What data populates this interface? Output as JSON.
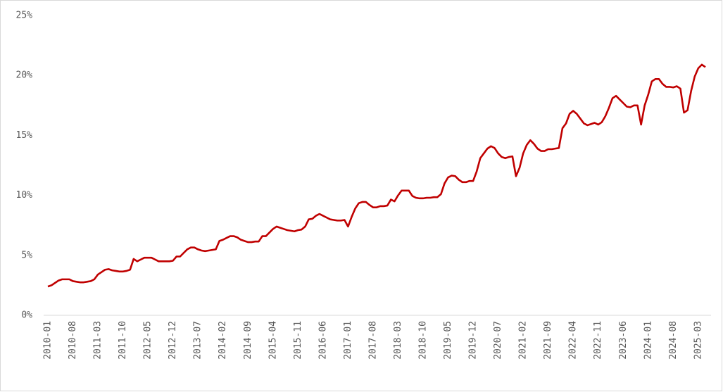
{
  "chart_data": {
    "type": "line",
    "categories": [
      "2010-01",
      null,
      null,
      null,
      null,
      null,
      null,
      "2010-08",
      null,
      null,
      null,
      null,
      null,
      null,
      "2011-03",
      null,
      null,
      null,
      null,
      null,
      null,
      "2011-10",
      null,
      null,
      null,
      null,
      null,
      null,
      "2012-05",
      null,
      null,
      null,
      null,
      null,
      null,
      "2012-12",
      null,
      null,
      null,
      null,
      null,
      null,
      "2013-07",
      null,
      null,
      null,
      null,
      null,
      null,
      "2014-02",
      null,
      null,
      null,
      null,
      null,
      null,
      "2014-09",
      null,
      null,
      null,
      null,
      null,
      null,
      "2015-04",
      null,
      null,
      null,
      null,
      null,
      null,
      "2015-11",
      null,
      null,
      null,
      null,
      null,
      null,
      "2016-06",
      null,
      null,
      null,
      null,
      null,
      null,
      "2017-01",
      null,
      null,
      null,
      null,
      null,
      null,
      "2017-08",
      null,
      null,
      null,
      null,
      null,
      null,
      "2018-03",
      null,
      null,
      null,
      null,
      null,
      null,
      "2018-10",
      null,
      null,
      null,
      null,
      null,
      null,
      "2019-05",
      null,
      null,
      null,
      null,
      null,
      null,
      "2019-12",
      null,
      null,
      null,
      null,
      null,
      null,
      "2020-07",
      null,
      null,
      null,
      null,
      null,
      null,
      "2021-02",
      null,
      null,
      null,
      null,
      null,
      null,
      "2021-09",
      null,
      null,
      null,
      null,
      null,
      null,
      "2022-04",
      null,
      null,
      null,
      null,
      null,
      null,
      "2022-11",
      null,
      null,
      null,
      null,
      null,
      null,
      "2023-06",
      null,
      null,
      null,
      null,
      null,
      null,
      "2024-01",
      null,
      null,
      null,
      null,
      null,
      null,
      "2024-08",
      null,
      null,
      null,
      null,
      null,
      null,
      "2025-03",
      null,
      null
    ],
    "values": [
      2.4,
      2.5,
      2.7,
      2.9,
      3.0,
      3.0,
      3.0,
      2.85,
      2.8,
      2.75,
      2.75,
      2.8,
      2.85,
      3.0,
      3.4,
      3.6,
      3.8,
      3.85,
      3.75,
      3.7,
      3.65,
      3.65,
      3.7,
      3.8,
      4.7,
      4.5,
      4.65,
      4.8,
      4.8,
      4.8,
      4.65,
      4.5,
      4.5,
      4.5,
      4.5,
      4.55,
      4.9,
      4.9,
      5.2,
      5.5,
      5.65,
      5.65,
      5.5,
      5.4,
      5.35,
      5.4,
      5.45,
      5.5,
      6.2,
      6.3,
      6.45,
      6.6,
      6.6,
      6.5,
      6.3,
      6.2,
      6.1,
      6.1,
      6.15,
      6.15,
      6.6,
      6.6,
      6.9,
      7.2,
      7.4,
      7.3,
      7.2,
      7.1,
      7.05,
      7.0,
      7.1,
      7.15,
      7.4,
      8.0,
      8.05,
      8.3,
      8.45,
      8.3,
      8.15,
      8.0,
      7.95,
      7.9,
      7.9,
      7.95,
      7.4,
      8.2,
      8.9,
      9.35,
      9.45,
      9.45,
      9.2,
      9.0,
      9.0,
      9.1,
      9.1,
      9.15,
      9.65,
      9.5,
      10.0,
      10.4,
      10.4,
      10.4,
      9.95,
      9.8,
      9.75,
      9.75,
      9.8,
      9.8,
      9.85,
      9.85,
      10.1,
      11.0,
      11.5,
      11.65,
      11.6,
      11.3,
      11.1,
      11.1,
      11.2,
      11.2,
      12.0,
      13.1,
      13.5,
      13.9,
      14.1,
      13.95,
      13.5,
      13.2,
      13.1,
      13.2,
      13.25,
      11.6,
      12.3,
      13.5,
      14.2,
      14.6,
      14.3,
      13.9,
      13.7,
      13.7,
      13.85,
      13.85,
      13.9,
      13.95,
      15.6,
      16.0,
      16.8,
      17.05,
      16.8,
      16.4,
      16.0,
      15.85,
      15.95,
      16.05,
      15.9,
      16.1,
      16.6,
      17.3,
      18.1,
      18.3,
      18.0,
      17.7,
      17.4,
      17.35,
      17.5,
      17.5,
      15.9,
      17.5,
      18.4,
      19.5,
      19.7,
      19.7,
      19.3,
      19.05,
      19.05,
      19.0,
      19.1,
      18.9,
      16.9,
      17.1,
      18.7,
      19.9,
      20.6,
      20.9,
      20.7
    ],
    "color": "#c00000",
    "ylim": [
      0,
      25
    ],
    "yticks": [
      {
        "value": 0,
        "label": "0%"
      },
      {
        "value": 5,
        "label": "5%"
      },
      {
        "value": 10,
        "label": "10%"
      },
      {
        "value": 15,
        "label": "15%"
      },
      {
        "value": 20,
        "label": "20%"
      },
      {
        "value": 25,
        "label": "25%"
      }
    ],
    "grid": false
  }
}
